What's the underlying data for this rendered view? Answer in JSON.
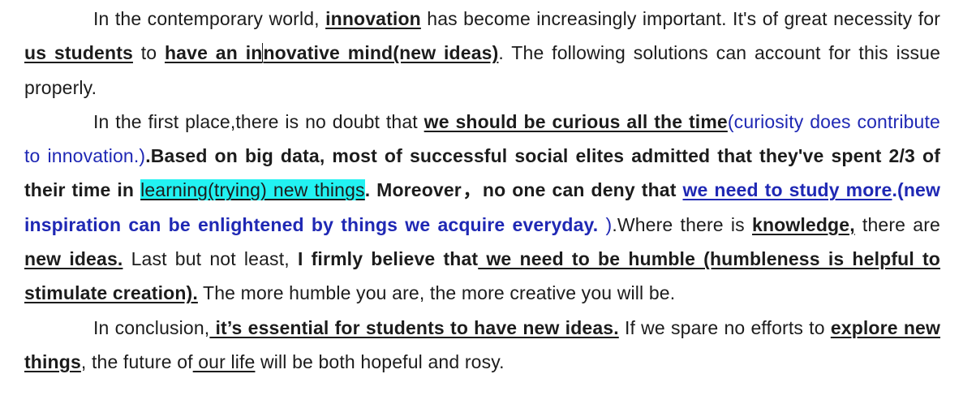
{
  "paragraphs": [
    {
      "segments": [
        {
          "text": "In the contemporary world, "
        },
        {
          "text": "innovation",
          "bold": true,
          "underline": true
        },
        {
          "text": " has become increasingly important. It's of great necessity for"
        },
        {
          "text": " us students",
          "bold": true,
          "underline": true
        },
        {
          "text": " to "
        },
        {
          "text": "have an in",
          "bold": true,
          "underline": true
        },
        {
          "cursor": true
        },
        {
          "text": "novative mind(new ideas)",
          "bold": true,
          "underline": true
        },
        {
          "text": ". The following solutions can account for this issue properly."
        }
      ]
    },
    {
      "segments": [
        {
          "text": "In the first place,there is no doubt that "
        },
        {
          "text": "we should be curious all the time",
          "bold": true,
          "underline": true
        },
        {
          "text": "(curiosity does contribute to innovation.)",
          "color": "blue"
        },
        {
          "text": ".Based on big data, most of successful social elites admitted that they've spent 2/3 of their time in ",
          "bold": true
        },
        {
          "text": "learning(trying) new things",
          "underline": true,
          "highlight": true
        },
        {
          "text": ". Moreover，no one can deny that ",
          "bold": true
        },
        {
          "text": "we need to study more",
          "bold": true,
          "underline": true,
          "color": "blue"
        },
        {
          "text": ".(new inspiration can be enlightened by things we acquire everyday. ",
          "bold": true,
          "color": "blue"
        },
        {
          "text": ")",
          "color": "blue"
        },
        {
          "text": ".Where there is "
        },
        {
          "text": "knowledge,",
          "bold": true,
          "underline": true
        },
        {
          "text": " there are"
        },
        {
          "text": " new ideas.",
          "bold": true,
          "underline": true
        },
        {
          "text": " Last but not least, "
        },
        {
          "text": "I firmly believe that",
          "bold": true
        },
        {
          "text": " we need to be humble (humbleness is helpful to stimulate creation).",
          "bold": true,
          "underline": true
        },
        {
          "text": " The more humble you are, the more creative you will be."
        }
      ]
    },
    {
      "segments": [
        {
          "text": "In conclusion,"
        },
        {
          "text": " it’s essential for students to have new ideas.",
          "bold": true,
          "underline": true
        },
        {
          "text": " If we spare no efforts to "
        },
        {
          "text": "explore new things",
          "bold": true,
          "underline": true
        },
        {
          "text": ", the future of"
        },
        {
          "text": " our life",
          "underline": true
        },
        {
          "text": " will be both hopeful and rosy."
        }
      ]
    }
  ],
  "colors": {
    "text": "#1c1c1c",
    "blue": "#1f28b4",
    "highlight": "#22f2f2",
    "background": "#ffffff"
  }
}
